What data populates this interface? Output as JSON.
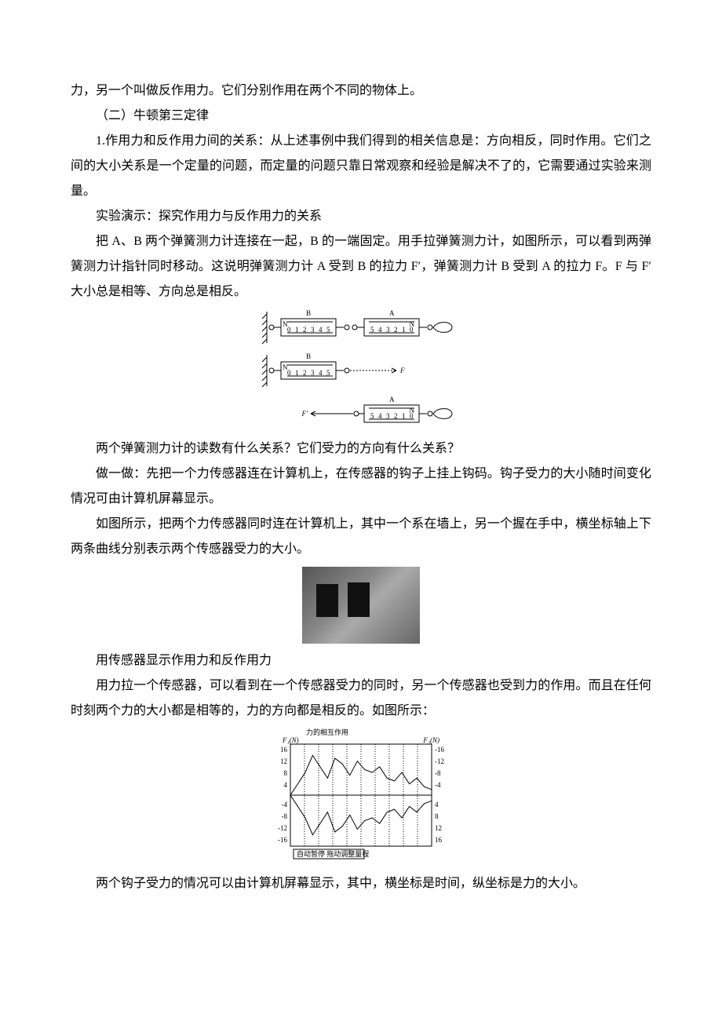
{
  "p": [
    "力，另一个叫做反作用力。它们分别作用在两个不同的物体上。",
    "（二）牛顿第三定律",
    "1.作用力和反作用力间的关系：从上述事例中我们得到的相关信息是：方向相反，同时作用。它们之间的大小关系是一个定量的问题，而定量的问题只靠日常观察和经验是解决不了的，它需要通过实验来测量。",
    "实验演示：探究作用力与反作用力的关系",
    "把 A、B 两个弹簧测力计连接在一起，B 的一端固定。用手拉弹簧测力计，如图所示，可以看到两弹簧测力计指针同时移动。这说明弹簧测力计 A 受到 B 的拉力 F′，弹簧测力计 B 受到 A 的拉力 F。F 与 F′ 大小总是相等、方向总是相反。",
    "两个弹簧测力计的读数有什么关系？它们受力的方向有什么关系？",
    "做一做：先把一个力传感器连在计算机上，在传感器的钩子上挂上钩码。钩子受力的大小随时间变化情况可由计算机屏幕显示。",
    "如图所示，把两个力传感器同时连在计算机上，其中一个系在墙上，另一个握在手中，横坐标轴上下两条曲线分别表示两个传感器受力的大小。",
    "用传感器显示作用力和反作用力",
    "用力拉一个传感器，可以看到在一个传感器受力的同时，另一个传感器也受到力的作用。而且在任何时刻两个力的大小都是相等的，力的方向都是相反的。如图所示：",
    "两个钩子受力的情况可以由计算机屏幕显示，其中，横坐标是时间，纵坐标是力的大小。"
  ],
  "spring_diagram": {
    "labels": {
      "A": "A",
      "B": "B",
      "F": "F",
      "Fp": "F′",
      "N": "N"
    },
    "scale_ticks": [
      "0",
      "1",
      "2",
      "3",
      "4",
      "5"
    ]
  },
  "chart": {
    "title": "力的相互作用",
    "left_axis_label": "F₁(N)",
    "right_axis_label": "F₂(N)",
    "y_ticks_left": [
      16,
      12,
      8,
      4,
      -4,
      -8,
      -12,
      -16
    ],
    "y_ticks_right": [
      -16,
      -12,
      -8,
      -4,
      4,
      8,
      12,
      16
    ],
    "ylim": [
      -18,
      18
    ],
    "series_top": [
      0,
      4,
      8,
      14,
      10,
      6,
      13,
      11,
      7,
      12,
      9,
      8,
      10,
      6,
      5,
      8,
      4,
      6,
      3,
      2
    ],
    "series_bot": [
      0,
      -4,
      -8,
      -14,
      -10,
      -6,
      -13,
      -11,
      -7,
      -12,
      -9,
      -8,
      -10,
      -6,
      -5,
      -8,
      -4,
      -6,
      -3,
      -2
    ],
    "line_color": "#000000",
    "background_color": "#ffffff",
    "grid_color": "#888888",
    "bottom_caption": "自动暂停 拖动调整量程"
  }
}
